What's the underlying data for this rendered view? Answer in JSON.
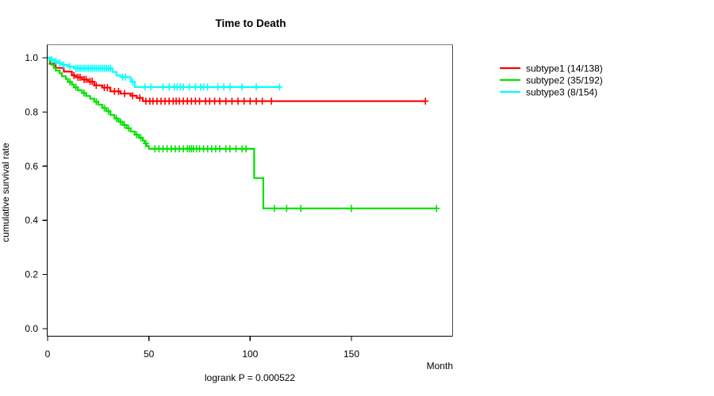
{
  "chart_data": {
    "type": "line",
    "subtype": "kaplan-meier-step-curves",
    "title": "Time to Death",
    "xlabel": "Month",
    "ylabel": "cumulative survival rate",
    "annotation": "logrank P = 0.000522",
    "xlim": [
      0,
      200
    ],
    "ylim": [
      0,
      1.04
    ],
    "xticks": [
      0,
      50,
      100,
      150
    ],
    "yticks": [
      0.0,
      0.2,
      0.4,
      0.6,
      0.8,
      1.0
    ],
    "grid": false,
    "legend_position": "right-outside",
    "frame_colors": {
      "top": "#7f7f7f",
      "right": "#4a4a4a",
      "bottom": "#000000",
      "left": "#000000"
    },
    "series": [
      {
        "name": "subtype1",
        "label": "subtype1 (14/138)",
        "color": "#ff0000",
        "events": 14,
        "n": 138,
        "end_month": 186.5,
        "steps": [
          [
            0,
            1.0
          ],
          [
            1,
            0.978
          ],
          [
            4,
            0.963
          ],
          [
            8,
            0.949
          ],
          [
            12,
            0.935
          ],
          [
            14,
            0.928
          ],
          [
            17,
            0.92
          ],
          [
            20,
            0.912
          ],
          [
            23,
            0.898
          ],
          [
            27,
            0.89
          ],
          [
            31,
            0.876
          ],
          [
            36,
            0.868
          ],
          [
            41,
            0.86
          ],
          [
            44,
            0.852
          ],
          [
            47,
            0.84
          ]
        ],
        "censors": [
          [
            13,
            0.935
          ],
          [
            15,
            0.928
          ],
          [
            16,
            0.928
          ],
          [
            18,
            0.92
          ],
          [
            19,
            0.92
          ],
          [
            21,
            0.913
          ],
          [
            22,
            0.913
          ],
          [
            24,
            0.898
          ],
          [
            28,
            0.89
          ],
          [
            29.5,
            0.89
          ],
          [
            33,
            0.876
          ],
          [
            35,
            0.876
          ],
          [
            38,
            0.868
          ],
          [
            42,
            0.86
          ],
          [
            45.5,
            0.852
          ],
          [
            48.5,
            0.84
          ],
          [
            50.5,
            0.84
          ],
          [
            52,
            0.84
          ],
          [
            54,
            0.84
          ],
          [
            56,
            0.84
          ],
          [
            58,
            0.84
          ],
          [
            60,
            0.84
          ],
          [
            62,
            0.84
          ],
          [
            63.5,
            0.84
          ],
          [
            65,
            0.84
          ],
          [
            67,
            0.84
          ],
          [
            69,
            0.84
          ],
          [
            71,
            0.84
          ],
          [
            73,
            0.84
          ],
          [
            75,
            0.84
          ],
          [
            78,
            0.84
          ],
          [
            80,
            0.84
          ],
          [
            82.5,
            0.84
          ],
          [
            85,
            0.84
          ],
          [
            88,
            0.84
          ],
          [
            91,
            0.84
          ],
          [
            94,
            0.84
          ],
          [
            97,
            0.84
          ],
          [
            100,
            0.84
          ],
          [
            103,
            0.84
          ],
          [
            106,
            0.84
          ],
          [
            110.5,
            0.84
          ],
          [
            186.5,
            0.84
          ]
        ]
      },
      {
        "name": "subtype2",
        "label": "subtype2 (35/192)",
        "color": "#00e100",
        "events": 35,
        "n": 192,
        "end_month": 192,
        "steps": [
          [
            0,
            1.0
          ],
          [
            1,
            0.984
          ],
          [
            2,
            0.974
          ],
          [
            3,
            0.963
          ],
          [
            4,
            0.953
          ],
          [
            6,
            0.943
          ],
          [
            7,
            0.932
          ],
          [
            9,
            0.922
          ],
          [
            10,
            0.911
          ],
          [
            12,
            0.901
          ],
          [
            13,
            0.891
          ],
          [
            15,
            0.88
          ],
          [
            17,
            0.87
          ],
          [
            19,
            0.859
          ],
          [
            21,
            0.849
          ],
          [
            23,
            0.838
          ],
          [
            25,
            0.827
          ],
          [
            27,
            0.815
          ],
          [
            29,
            0.803
          ],
          [
            31,
            0.789
          ],
          [
            33,
            0.776
          ],
          [
            35,
            0.764
          ],
          [
            37,
            0.752
          ],
          [
            39,
            0.74
          ],
          [
            41,
            0.728
          ],
          [
            43,
            0.716
          ],
          [
            45,
            0.705
          ],
          [
            47,
            0.694
          ],
          [
            48,
            0.684
          ],
          [
            49,
            0.674
          ],
          [
            50,
            0.664
          ],
          [
            102,
            0.556
          ],
          [
            106.5,
            0.444
          ]
        ],
        "censors": [
          [
            11,
            0.911
          ],
          [
            14,
            0.891
          ],
          [
            18,
            0.87
          ],
          [
            24,
            0.838
          ],
          [
            28,
            0.815
          ],
          [
            30,
            0.803
          ],
          [
            34,
            0.776
          ],
          [
            36,
            0.764
          ],
          [
            38,
            0.752
          ],
          [
            40,
            0.74
          ],
          [
            44,
            0.716
          ],
          [
            46,
            0.705
          ],
          [
            48.5,
            0.684
          ],
          [
            53,
            0.664
          ],
          [
            55,
            0.664
          ],
          [
            57,
            0.664
          ],
          [
            59,
            0.664
          ],
          [
            61,
            0.664
          ],
          [
            63,
            0.664
          ],
          [
            65,
            0.664
          ],
          [
            67,
            0.664
          ],
          [
            69,
            0.664
          ],
          [
            70,
            0.664
          ],
          [
            71,
            0.664
          ],
          [
            72,
            0.664
          ],
          [
            73.5,
            0.664
          ],
          [
            75,
            0.664
          ],
          [
            77,
            0.664
          ],
          [
            79,
            0.664
          ],
          [
            81,
            0.664
          ],
          [
            83,
            0.664
          ],
          [
            85,
            0.664
          ],
          [
            88,
            0.664
          ],
          [
            90,
            0.664
          ],
          [
            93,
            0.664
          ],
          [
            96,
            0.664
          ],
          [
            98,
            0.664
          ],
          [
            112,
            0.444
          ],
          [
            118,
            0.444
          ],
          [
            125,
            0.444
          ],
          [
            150,
            0.444
          ],
          [
            192,
            0.444
          ]
        ]
      },
      {
        "name": "subtype3",
        "label": "subtype3 (8/154)",
        "color": "#00ffff",
        "events": 8,
        "n": 154,
        "end_month": 114.5,
        "steps": [
          [
            0,
            1.0
          ],
          [
            1,
            0.994
          ],
          [
            3,
            0.987
          ],
          [
            5,
            0.981
          ],
          [
            7,
            0.974
          ],
          [
            10,
            0.968
          ],
          [
            13,
            0.961
          ],
          [
            32,
            0.948
          ],
          [
            34,
            0.935
          ],
          [
            36,
            0.929
          ],
          [
            41,
            0.911
          ],
          [
            43,
            0.892
          ]
        ],
        "censors": [
          [
            2,
            0.994
          ],
          [
            4,
            0.987
          ],
          [
            6,
            0.981
          ],
          [
            8,
            0.974
          ],
          [
            11,
            0.968
          ],
          [
            14,
            0.961
          ],
          [
            15,
            0.961
          ],
          [
            16,
            0.961
          ],
          [
            17,
            0.961
          ],
          [
            18,
            0.961
          ],
          [
            19,
            0.961
          ],
          [
            20,
            0.961
          ],
          [
            21,
            0.961
          ],
          [
            22,
            0.961
          ],
          [
            23,
            0.961
          ],
          [
            24,
            0.961
          ],
          [
            25,
            0.961
          ],
          [
            26,
            0.961
          ],
          [
            27,
            0.961
          ],
          [
            28,
            0.961
          ],
          [
            29,
            0.961
          ],
          [
            30,
            0.961
          ],
          [
            31,
            0.961
          ],
          [
            37,
            0.929
          ],
          [
            38.5,
            0.929
          ],
          [
            42,
            0.911
          ],
          [
            48,
            0.892
          ],
          [
            51,
            0.892
          ],
          [
            57,
            0.892
          ],
          [
            60,
            0.892
          ],
          [
            62.5,
            0.892
          ],
          [
            64,
            0.892
          ],
          [
            65.5,
            0.892
          ],
          [
            67,
            0.892
          ],
          [
            70,
            0.892
          ],
          [
            73,
            0.892
          ],
          [
            75.5,
            0.892
          ],
          [
            77,
            0.892
          ],
          [
            79,
            0.892
          ],
          [
            84,
            0.892
          ],
          [
            87,
            0.892
          ],
          [
            90,
            0.892
          ],
          [
            96,
            0.892
          ],
          [
            103,
            0.892
          ],
          [
            114.5,
            0.892
          ]
        ]
      }
    ]
  }
}
